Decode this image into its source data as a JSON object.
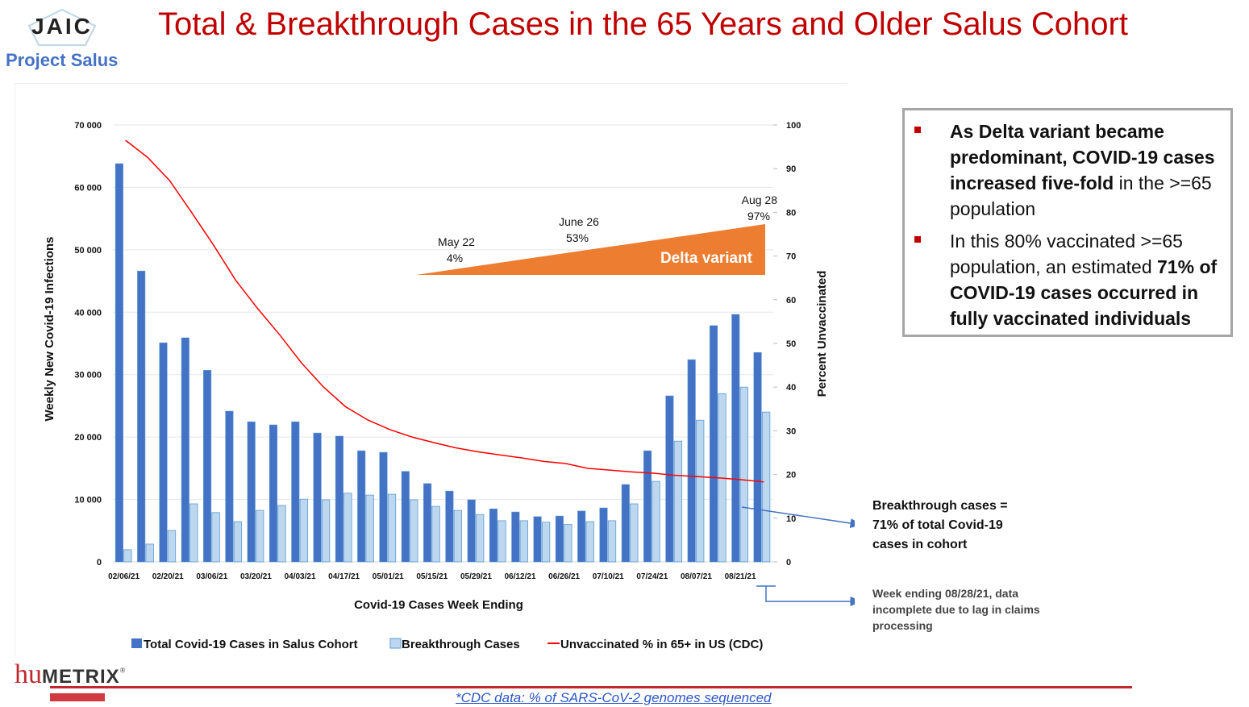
{
  "header": {
    "logo_text": "JAIC",
    "project": "Project Salus",
    "title": "Total & Breakthrough Cases in the 65 Years and Older Salus Cohort"
  },
  "chart_data": {
    "type": "bar",
    "title": "",
    "xlabel": "Covid-19 Cases Week Ending",
    "ylabel": "Weekly New Covid-19 Infections",
    "y2label": "Percent Unvaccinated",
    "ylim": [
      0,
      70000
    ],
    "y2lim": [
      0,
      100
    ],
    "yticks": [
      "0",
      "10 000",
      "20 000",
      "30 000",
      "40 000",
      "50 000",
      "60 000",
      "70 000"
    ],
    "y2ticks": [
      "0",
      "10",
      "20",
      "30",
      "40",
      "50",
      "60",
      "70",
      "80",
      "90",
      "100"
    ],
    "grid": true,
    "legend_position": "bottom",
    "categories": [
      "02/06/21",
      "02/13/21",
      "02/20/21",
      "02/27/21",
      "03/06/21",
      "03/13/21",
      "03/20/21",
      "03/27/21",
      "04/03/21",
      "04/10/21",
      "04/17/21",
      "04/24/21",
      "05/01/21",
      "05/08/21",
      "05/15/21",
      "05/22/21",
      "05/29/21",
      "06/05/21",
      "06/12/21",
      "06/19/21",
      "06/26/21",
      "07/03/21",
      "07/10/21",
      "07/17/21",
      "07/24/21",
      "07/31/21",
      "08/07/21",
      "08/14/21",
      "08/21/21",
      "08/28/21"
    ],
    "tick_labels": [
      "02/06/21",
      "02/20/21",
      "03/06/21",
      "03/20/21",
      "04/03/21",
      "04/17/21",
      "05/01/21",
      "05/15/21",
      "05/29/21",
      "06/12/21",
      "06/26/21",
      "07/10/21",
      "07/24/21",
      "08/07/21",
      "08/21/21"
    ],
    "series": [
      {
        "name": "Total Covid-19 Cases in Salus Cohort",
        "type": "bar",
        "axis": "left",
        "color": "#4472c4",
        "values": [
          63800,
          46600,
          35100,
          35900,
          30700,
          24150,
          22450,
          21950,
          22450,
          20650,
          20150,
          17800,
          17550,
          14500,
          12550,
          11350,
          9950,
          8500,
          8000,
          7250,
          7350,
          8150,
          8650,
          12400,
          17800,
          26600,
          32400,
          37850,
          39650,
          33550
        ]
      },
      {
        "name": "Breakthrough Cases",
        "type": "bar",
        "axis": "left",
        "color": "#bdd7ee",
        "values": [
          1950,
          2850,
          5050,
          9300,
          7900,
          6450,
          8250,
          9050,
          10050,
          9950,
          11000,
          10700,
          10850,
          9950,
          8900,
          8250,
          7600,
          6600,
          6600,
          6350,
          6000,
          6450,
          6600,
          9300,
          12900,
          19350,
          22700,
          26950,
          28000,
          24000
        ]
      },
      {
        "name": "Unvaccinated % in 65+ in US (CDC)",
        "type": "line",
        "axis": "right",
        "color": "#ff0000",
        "values": [
          96.5,
          92.6,
          87.3,
          80.0,
          72.5,
          64.5,
          58.0,
          52.0,
          45.5,
          40.0,
          35.5,
          32.5,
          30.3,
          28.6,
          27.3,
          26.1,
          25.2,
          24.5,
          23.8,
          23.0,
          22.5,
          21.4,
          21.0,
          20.6,
          20.3,
          19.8,
          19.5,
          19.2,
          18.8,
          18.3
        ]
      }
    ],
    "annotations": {
      "delta_label": "Delta variant",
      "points": [
        {
          "date": "May 22",
          "pct": "4%"
        },
        {
          "date": "June 26",
          "pct": "53%"
        },
        {
          "date": "Aug 28",
          "pct": "97%"
        }
      ]
    }
  },
  "callout": {
    "items": [
      {
        "bold": "As Delta variant became predominant, COVID-19 cases increased five-fold",
        "normal": " in the >=65 population",
        "bold_tail": ""
      },
      {
        "normal_pre": "In this 80% vaccinated >=65 population, an estimated ",
        "bold": "71% of COVID-19 cases occurred in fully vaccinated individuals"
      }
    ]
  },
  "annotations": {
    "breakthrough": [
      "Breakthrough cases =",
      "71% of total Covid-19",
      "cases in cohort"
    ],
    "incomplete": [
      "Week ending 08/28/21, data",
      "incomplete due to lag in claims",
      "processing"
    ]
  },
  "footer": {
    "brand_hu": "hu",
    "brand_metrix": "METRIX",
    "brand_reg": "®",
    "footnote": "*CDC data: % of SARS-CoV-2 genomes sequenced"
  }
}
